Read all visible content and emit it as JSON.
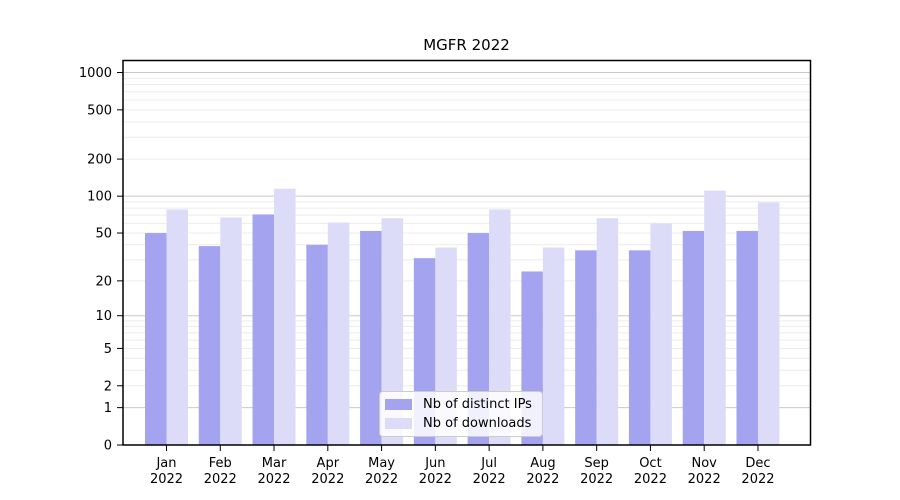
{
  "title": "MGFR 2022",
  "legend": {
    "position": "lower center",
    "items": [
      {
        "label": "Nb of distinct IPs",
        "color": "#a3a3f0"
      },
      {
        "label": "Nb of downloads",
        "color": "#dcdcf9"
      }
    ]
  },
  "axes": {
    "y_tick_labels": [
      "1000",
      "500",
      "200",
      "100",
      "50",
      "20",
      "10",
      "5",
      "2",
      "1",
      "0"
    ],
    "x_tick_line1": [
      "Jan",
      "Feb",
      "Mar",
      "Apr",
      "May",
      "Jun",
      "Jul",
      "Aug",
      "Sep",
      "Oct",
      "Nov",
      "Dec"
    ],
    "x_tick_line2": "2022"
  },
  "colors": {
    "distinct_ips": "#a3a3f0",
    "downloads": "#dcdcf9",
    "grid_major": "#c9c9c9",
    "grid_minor": "#ececec",
    "spine": "#000000"
  },
  "chart_data": {
    "type": "bar",
    "title": "MGFR 2022",
    "categories": [
      {
        "month": "Jan",
        "year": "2022"
      },
      {
        "month": "Feb",
        "year": "2022"
      },
      {
        "month": "Mar",
        "year": "2022"
      },
      {
        "month": "Apr",
        "year": "2022"
      },
      {
        "month": "May",
        "year": "2022"
      },
      {
        "month": "Jun",
        "year": "2022"
      },
      {
        "month": "Jul",
        "year": "2022"
      },
      {
        "month": "Aug",
        "year": "2022"
      },
      {
        "month": "Sep",
        "year": "2022"
      },
      {
        "month": "Oct",
        "year": "2022"
      },
      {
        "month": "Nov",
        "year": "2022"
      },
      {
        "month": "Dec",
        "year": "2022"
      }
    ],
    "series": [
      {
        "name": "Nb of distinct IPs",
        "color": "#a3a3f0",
        "values": [
          50,
          39,
          71,
          40,
          52,
          31,
          50,
          24,
          36,
          36,
          52,
          52
        ]
      },
      {
        "name": "Nb of downloads",
        "color": "#dcdcf9",
        "values": [
          78,
          67,
          115,
          61,
          66,
          38,
          78,
          38,
          66,
          60,
          111,
          89
        ]
      }
    ],
    "xlabel": "",
    "ylabel": "",
    "yscale": "log1p",
    "yticks": [
      0,
      1,
      2,
      5,
      10,
      20,
      50,
      100,
      200,
      500,
      1000
    ],
    "ylim": [
      0,
      1250
    ],
    "grid": true,
    "grid_major_at": [
      1,
      10,
      100,
      1000
    ],
    "legend_position": "lower center"
  }
}
